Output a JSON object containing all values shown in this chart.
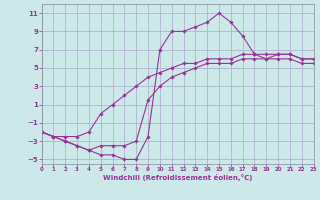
{
  "xlabel": "Windchill (Refroidissement éolien,°C)",
  "ylabel": "",
  "xlim": [
    0,
    23
  ],
  "ylim": [
    -5.5,
    12
  ],
  "xticks": [
    0,
    1,
    2,
    3,
    4,
    5,
    6,
    7,
    8,
    9,
    10,
    11,
    12,
    13,
    14,
    15,
    16,
    17,
    18,
    19,
    20,
    21,
    22,
    23
  ],
  "yticks": [
    -5,
    -3,
    -1,
    1,
    3,
    5,
    7,
    9,
    11
  ],
  "background_color": "#cce8e8",
  "grid_color": "#aaaacc",
  "line_color": "#993399",
  "series1_x": [
    0,
    1,
    2,
    3,
    4,
    5,
    6,
    7,
    8,
    9,
    10,
    11,
    12,
    13,
    14,
    15,
    16,
    17,
    18,
    19,
    20,
    21,
    22,
    23
  ],
  "series1_y": [
    -2,
    -2.5,
    -3,
    -3.5,
    -4,
    -4.5,
    -4.5,
    -5,
    -5,
    -2.5,
    7,
    9,
    9,
    9.5,
    10,
    11,
    10,
    8.5,
    6.5,
    6,
    6.5,
    6.5,
    6,
    6
  ],
  "series2_x": [
    0,
    1,
    2,
    3,
    4,
    5,
    6,
    7,
    8,
    9,
    10,
    11,
    12,
    13,
    14,
    15,
    16,
    17,
    18,
    19,
    20,
    21,
    22,
    23
  ],
  "series2_y": [
    -2,
    -2.5,
    -2.5,
    -2.5,
    -2,
    0,
    1,
    2,
    3,
    4,
    4.5,
    5,
    5.5,
    5.5,
    6,
    6,
    6,
    6.5,
    6.5,
    6.5,
    6.5,
    6.5,
    6,
    6
  ],
  "series3_x": [
    0,
    1,
    2,
    3,
    4,
    5,
    6,
    7,
    8,
    9,
    10,
    11,
    12,
    13,
    14,
    15,
    16,
    17,
    18,
    19,
    20,
    21,
    22,
    23
  ],
  "series3_y": [
    -2,
    -2.5,
    -3,
    -3.5,
    -4,
    -3.5,
    -3.5,
    -3.5,
    -3,
    1.5,
    3,
    4,
    4.5,
    5,
    5.5,
    5.5,
    5.5,
    6,
    6,
    6,
    6,
    6,
    5.5,
    5.5
  ]
}
